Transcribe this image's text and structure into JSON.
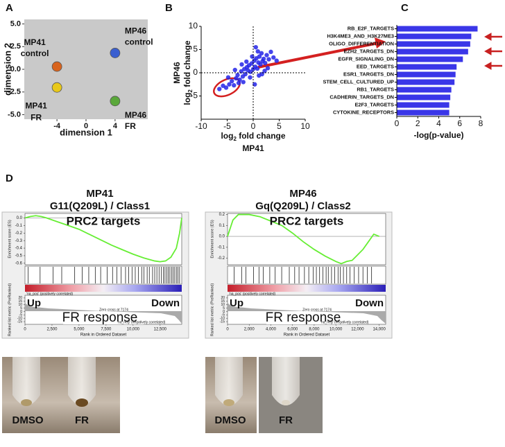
{
  "panel_labels": {
    "a": "A",
    "b": "B",
    "c": "C",
    "d": "D"
  },
  "chart_data": [
    {
      "type": "scatter",
      "xlabel": "dimension 1",
      "ylabel": "dimension 2",
      "xlim": [
        -8.5,
        8.5
      ],
      "ylim": [
        -5.5,
        5.5
      ],
      "xticks": [
        -4,
        0,
        4
      ],
      "yticks": [
        {
          "value": 5,
          "label": "5.0"
        },
        2.5,
        {
          "value": 0,
          "label": "0.0"
        },
        -2.5,
        {
          "value": -5,
          "label": "-5.0"
        }
      ],
      "grid_background": "#c9c9c9",
      "points": [
        {
          "label": [
            "MP41",
            "control"
          ],
          "color": "#d8641e",
          "x": -4,
          "y": 0.3
        },
        {
          "label": [
            "MP46",
            "control"
          ],
          "color": "#3a5fd0",
          "x": 4,
          "y": 1.8
        },
        {
          "label": [
            "MP41",
            "FR"
          ],
          "color": "#e8c81a",
          "x": -4,
          "y": -2.0
        },
        {
          "label": [
            "MP46",
            "FR"
          ],
          "color": "#5aa83a",
          "x": 4,
          "y": -3.5
        }
      ]
    },
    {
      "type": "scatter",
      "xlabel": [
        "log",
        "2",
        " fold change"
      ],
      "xgroup": "MP41",
      "ylabel": [
        "log",
        "2",
        " fold change"
      ],
      "ygroup": "MP46",
      "color": "#2424e8",
      "xlim": [
        -10,
        10
      ],
      "ylim": [
        -10,
        10
      ],
      "xticks": [
        -10,
        -5,
        0,
        5,
        10
      ],
      "yticks": [
        10,
        5,
        0,
        -5
      ],
      "x": [
        -6.5,
        -5.8,
        -5.2,
        -4.6,
        -4.1,
        -3.7,
        -3.3,
        -3.0,
        -2.6,
        -2.3,
        -2.0,
        -1.7,
        -1.5,
        -1.2,
        -1.0,
        -0.8,
        -0.5,
        -0.3,
        0,
        0.2,
        0.4,
        0.6,
        0.8,
        1.0,
        1.2,
        1.4,
        1.6,
        1.8,
        2.0,
        2.3,
        2.6,
        3.0,
        3.4,
        3.9,
        4.5,
        -2.8,
        -1.9,
        -0.6,
        0.3,
        1.1,
        2.2,
        -3.5,
        -1.3,
        0.9,
        1.7,
        2.8,
        -0.2,
        0.5,
        -4.8,
        -2.2
      ],
      "y": [
        -3.5,
        -2.8,
        -3.2,
        -2.5,
        -1.8,
        -2.7,
        -1.2,
        -0.5,
        -1.5,
        0.3,
        -0.8,
        0.8,
        -0.3,
        1.2,
        0.5,
        1.6,
        0.2,
        2.0,
        0.8,
        2.6,
        1.3,
        3.1,
        0.9,
        2.2,
        3.5,
        1.8,
        4.2,
        2.5,
        3.0,
        2.1,
        3.8,
        2.9,
        4.5,
        3.3,
        2.6,
        -2.2,
        -2.0,
        -1.0,
        -2.5,
        -0.6,
        0.4,
        0.6,
        2.4,
        4.6,
        -0.3,
        1.0,
        3.5,
        5.5,
        -1.0,
        1.8
      ]
    },
    {
      "type": "bar",
      "orientation": "horizontal",
      "color": "#3a36e8",
      "xlabel": "-log(p-value)",
      "categories": [
        "RB_E2F_TARGETS",
        "H3K4ME3_AND_H3K27ME3",
        "OLIGO_DIFFERENTIATION",
        "EZH2_TARGETS_DN",
        "EGFR_SIGNALING_DN",
        "EED_TARGETS",
        "ESR1_TARGETS_DN",
        "STEM_CELL_CULTURED_UP",
        "RB1_TARGETS",
        "CADHERIN_TARGETS_DN",
        "E2F3_TARGETS",
        "CYTOKINE_RECEPTORS"
      ],
      "values": [
        7.7,
        7.1,
        7.0,
        6.8,
        6.3,
        5.7,
        5.6,
        5.5,
        5.2,
        5.1,
        5.0,
        5.0
      ],
      "xlim": [
        0,
        8
      ],
      "xticks": [
        0,
        2,
        4,
        6,
        8
      ]
    },
    {
      "type": "line",
      "title": [
        "MP41",
        "G11(Q209L) / Class1"
      ],
      "color": "#66ee33",
      "x": [
        0,
        500,
        1000,
        1500,
        2000,
        3000,
        4000,
        5000,
        6000,
        7000,
        8000,
        9000,
        10000,
        11000,
        12000,
        12500,
        13000,
        13500,
        14000,
        14300,
        14500
      ],
      "values": [
        0,
        0.02,
        0.03,
        0.02,
        0,
        -0.05,
        -0.1,
        -0.15,
        -0.22,
        -0.29,
        -0.36,
        -0.42,
        -0.48,
        -0.53,
        -0.57,
        -0.58,
        -0.57,
        -0.52,
        -0.4,
        -0.2,
        0
      ],
      "hits": [
        300,
        1400,
        2600,
        3400,
        4600,
        5300,
        5900,
        6500,
        7000,
        7600,
        8100,
        8500,
        8900,
        9300,
        9600,
        9900,
        10200,
        10500,
        10800,
        11000,
        11300,
        11500,
        11800,
        12000,
        12200,
        12400,
        12600,
        12800,
        12950,
        13100,
        13250,
        13400,
        13550,
        13700,
        13850,
        14000,
        14150,
        14300
      ],
      "xlim": [
        0,
        14500
      ],
      "ylim": [
        -0.62,
        0.06
      ],
      "xticks": [
        0,
        {
          "value": 2500,
          "label": "2,500"
        },
        {
          "value": 5000,
          "label": "5,000"
        },
        {
          "value": 7500,
          "label": "7,500"
        },
        {
          "value": 10000,
          "label": "10,000"
        },
        {
          "value": 12500,
          "label": "12,500"
        }
      ],
      "yticks": [
        {
          "value": 0,
          "label": "0.0"
        },
        -0.1,
        -0.2,
        -0.3,
        -0.4,
        -0.5,
        -0.6
      ],
      "metric_ylim": [
        -19,
        24
      ],
      "metric_yticks": [
        20,
        15,
        10,
        5,
        0,
        -5,
        -10,
        -15
      ],
      "ylabel": "Enrichment score (ES)",
      "metric_ylabel": "Ranked list metric (PreRanked)",
      "xlabel": "Rank in Ordered Dataset",
      "annotations": {
        "gene_set": "PRC2 targets",
        "up": "Up",
        "down": "Down",
        "response": "FR response",
        "pos": "'na_pos' (positively correlated)",
        "zero": "Zero cross at 7174",
        "neg": "'na_neg' (negatively correlated)"
      }
    },
    {
      "type": "line",
      "title": [
        "MP46",
        "Gq(Q209L) / Class2"
      ],
      "color": "#66ee33",
      "x": [
        0,
        500,
        1000,
        2000,
        3000,
        4000,
        5000,
        6000,
        7000,
        8000,
        9000,
        10000,
        10500,
        11000,
        11500,
        12000,
        12500,
        13000,
        13500,
        14000
      ],
      "values": [
        0,
        0.15,
        0.2,
        0.2,
        0.18,
        0.14,
        0.1,
        0.03,
        -0.05,
        -0.12,
        -0.18,
        -0.23,
        -0.25,
        -0.23,
        -0.22,
        -0.17,
        -0.12,
        -0.05,
        0.02,
        0
      ],
      "hits": [
        600,
        1300,
        1700,
        2400,
        2900,
        3300,
        3900,
        4400,
        5000,
        5700,
        6200,
        6600,
        7100,
        7500,
        7900,
        8200,
        8500,
        8800,
        9100,
        9300,
        9600,
        9900,
        10200,
        10400,
        10700,
        11000,
        11300,
        11700,
        12100,
        12500,
        12900,
        13300
      ],
      "xlim": [
        0,
        14600
      ],
      "ylim": [
        -0.26,
        0.21
      ],
      "xticks": [
        0,
        {
          "value": 2000,
          "label": "2,000"
        },
        {
          "value": 4000,
          "label": "4,000"
        },
        {
          "value": 6000,
          "label": "6,000"
        },
        {
          "value": 8000,
          "label": "8,000"
        },
        {
          "value": 10000,
          "label": "10,000"
        },
        {
          "value": 12000,
          "label": "12,000"
        },
        {
          "value": 14000,
          "label": "14,000"
        }
      ],
      "yticks": [
        0.2,
        0.1,
        {
          "value": 0,
          "label": "0.0"
        },
        -0.1,
        -0.2
      ],
      "metric_ylim": [
        -19,
        24
      ],
      "metric_yticks": [
        20,
        15,
        10,
        5,
        0,
        -5,
        -10,
        -15
      ],
      "ylabel": "Enrichment score (ES)",
      "metric_ylabel": "Ranked list metric (PreRanked)",
      "xlabel": "Rank in Ordered Dataset",
      "annotations": {
        "gene_set": "PRC2 targets",
        "up": "Up",
        "down": "Down",
        "response": "FR response",
        "pos": "'na_pos' (positively correlated)",
        "zero": "Zero cross at 7174",
        "neg": "'na_neg' (negatively correlated)"
      }
    }
  ],
  "photos": [
    {
      "labels": [
        "DMSO",
        "FR"
      ]
    },
    {
      "labels": [
        "DMSO",
        "FR"
      ]
    }
  ]
}
